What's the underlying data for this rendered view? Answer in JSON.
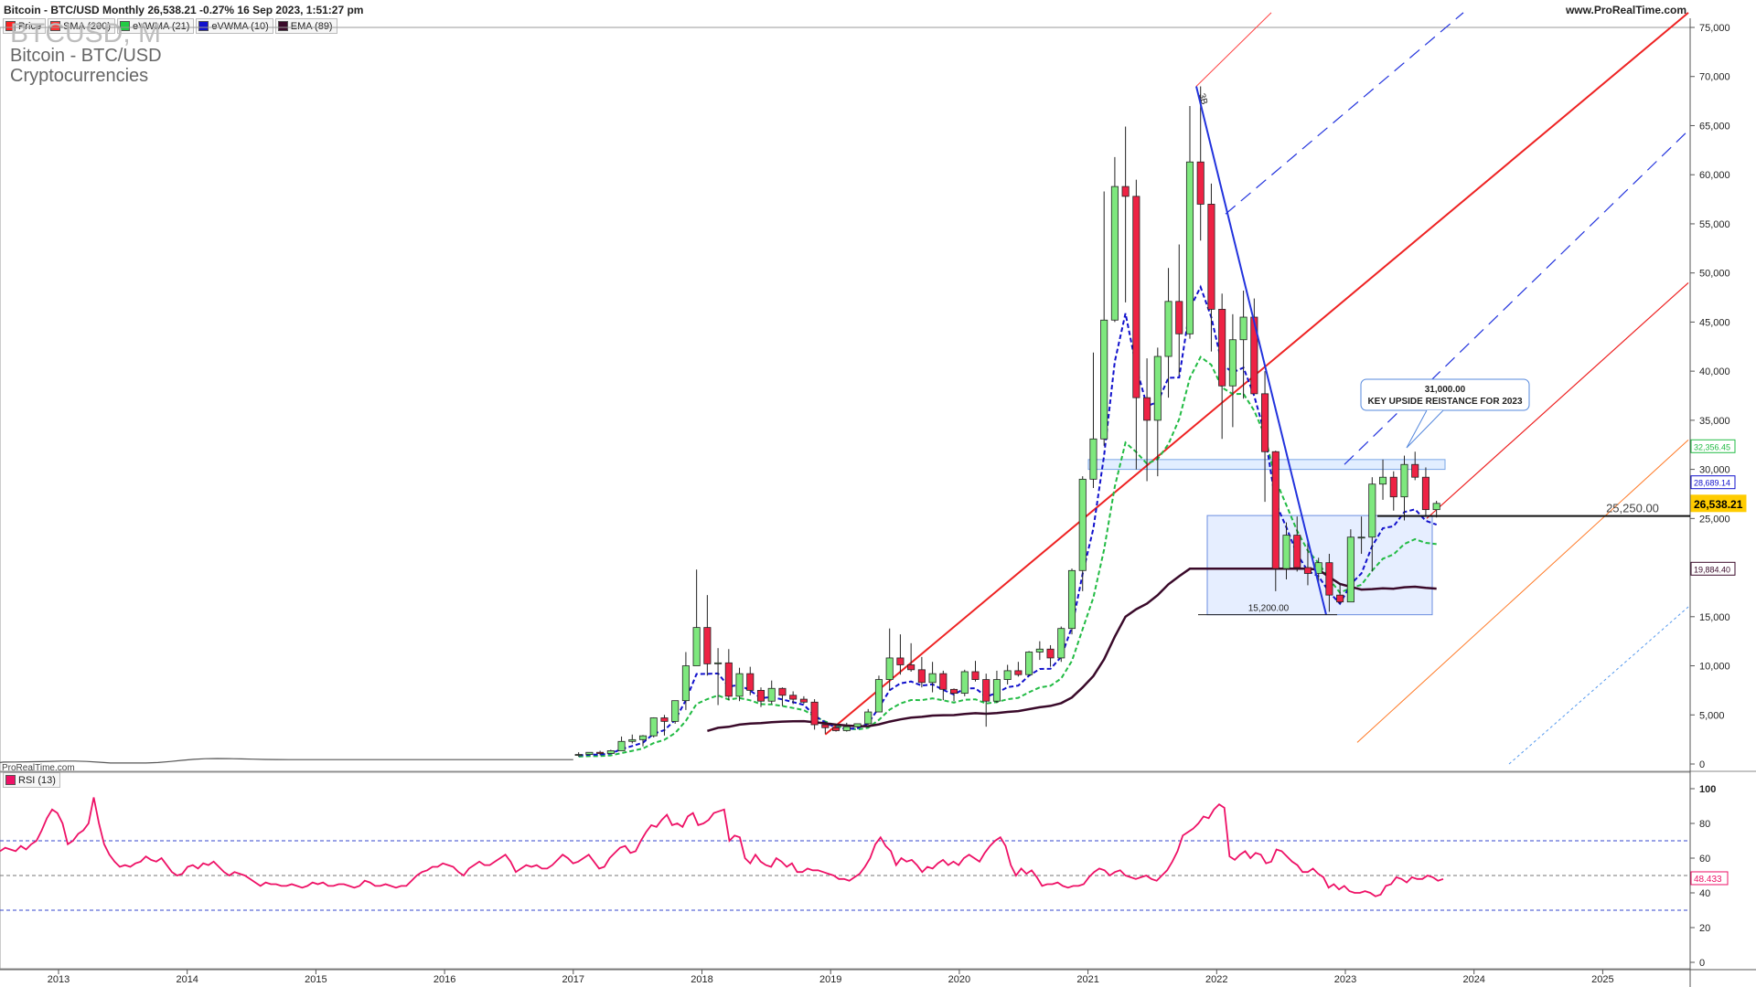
{
  "header": {
    "title": "Bitcoin - BTC/USD Monthly 26,538.21 -0.27% 16 Sep 2023, 1:51:27 pm",
    "site": "www.ProRealTime.com",
    "watermark": "ProRealTime.com"
  },
  "legend": [
    {
      "label": "Price",
      "color": "#ff2222"
    },
    {
      "label": "SMA (200)",
      "color": "#ff3333"
    },
    {
      "label": "eVWMA (21)",
      "color": "#22cc44"
    },
    {
      "label": "eVWMA (10)",
      "color": "#1111cc"
    },
    {
      "label": "EMA (89)",
      "color": "#3a0a2a"
    }
  ],
  "instrument": {
    "symbol": "BTCUSD, M",
    "name": "Bitcoin - BTC/USD",
    "category": "Cryptocurrencies"
  },
  "rsi_legend": {
    "label": "RSI (13)",
    "color": "#ee1166"
  },
  "colors": {
    "up": "#7ee87e",
    "down": "#ee2244",
    "sma": "#ee2222",
    "ev21": "#22bb44",
    "ev10": "#1111cc",
    "ema": "#3a0a2a",
    "rsi": "#ee1166"
  },
  "chart_data": [
    {
      "type": "candlestick",
      "title": "Bitcoin - BTC/USD Monthly",
      "y_axis_ticks": [
        0,
        5000,
        10000,
        15000,
        20000,
        25000,
        30000,
        35000,
        40000,
        45000,
        50000,
        55000,
        60000,
        65000,
        70000,
        75000
      ],
      "y_axis_tick_labels": [
        "0",
        "5,000",
        "10,000",
        "15,000",
        "20,000",
        "25,000",
        "30,000",
        "35,000",
        "40,000",
        "45,000",
        "50,000",
        "55,000",
        "60,000",
        "65,000",
        "70,000",
        "75,000"
      ],
      "ylim": [
        0,
        76500
      ],
      "x_axis_ticks": [
        "2013",
        "2014",
        "2015",
        "2016",
        "2017",
        "2018",
        "2019",
        "2020",
        "2021",
        "2022",
        "2023",
        "2024",
        "2025"
      ],
      "ohlc_monthly_2017_2023": [
        {
          "date": "2017-01",
          "o": 960,
          "h": 1200,
          "l": 750,
          "c": 970
        },
        {
          "date": "2017-02",
          "o": 970,
          "h": 1200,
          "l": 920,
          "c": 1190
        },
        {
          "date": "2017-03",
          "o": 1190,
          "h": 1350,
          "l": 890,
          "c": 1070
        },
        {
          "date": "2017-04",
          "o": 1070,
          "h": 1450,
          "l": 1050,
          "c": 1350
        },
        {
          "date": "2017-05",
          "o": 1350,
          "h": 2800,
          "l": 1350,
          "c": 2300
        },
        {
          "date": "2017-06",
          "o": 2300,
          "h": 3000,
          "l": 2100,
          "c": 2480
        },
        {
          "date": "2017-07",
          "o": 2480,
          "h": 2950,
          "l": 1800,
          "c": 2870
        },
        {
          "date": "2017-08",
          "o": 2870,
          "h": 4750,
          "l": 2700,
          "c": 4700
        },
        {
          "date": "2017-09",
          "o": 4700,
          "h": 5000,
          "l": 2900,
          "c": 4340
        },
        {
          "date": "2017-10",
          "o": 4340,
          "h": 6400,
          "l": 4100,
          "c": 6450
        },
        {
          "date": "2017-11",
          "o": 6450,
          "h": 11400,
          "l": 5500,
          "c": 10000
        },
        {
          "date": "2017-12",
          "o": 10000,
          "h": 19800,
          "l": 10000,
          "c": 13900
        },
        {
          "date": "2018-01",
          "o": 13900,
          "h": 17200,
          "l": 9000,
          "c": 10200
        },
        {
          "date": "2018-02",
          "o": 10200,
          "h": 11800,
          "l": 6000,
          "c": 10300
        },
        {
          "date": "2018-03",
          "o": 10300,
          "h": 11700,
          "l": 6500,
          "c": 6900
        },
        {
          "date": "2018-04",
          "o": 6900,
          "h": 9800,
          "l": 6400,
          "c": 9200
        },
        {
          "date": "2018-05",
          "o": 9200,
          "h": 9900,
          "l": 7000,
          "c": 7500
        },
        {
          "date": "2018-06",
          "o": 7500,
          "h": 7800,
          "l": 5800,
          "c": 6400
        },
        {
          "date": "2018-07",
          "o": 6400,
          "h": 8500,
          "l": 6100,
          "c": 7700
        },
        {
          "date": "2018-08",
          "o": 7700,
          "h": 7800,
          "l": 5900,
          "c": 7000
        },
        {
          "date": "2018-09",
          "o": 7000,
          "h": 7400,
          "l": 6100,
          "c": 6600
        },
        {
          "date": "2018-10",
          "o": 6600,
          "h": 6900,
          "l": 6100,
          "c": 6300
        },
        {
          "date": "2018-11",
          "o": 6300,
          "h": 6600,
          "l": 3500,
          "c": 4000
        },
        {
          "date": "2018-12",
          "o": 4000,
          "h": 4300,
          "l": 3100,
          "c": 3700
        },
        {
          "date": "2019-01",
          "o": 3700,
          "h": 4100,
          "l": 3300,
          "c": 3400
        },
        {
          "date": "2019-02",
          "o": 3400,
          "h": 4200,
          "l": 3300,
          "c": 3800
        },
        {
          "date": "2019-03",
          "o": 3800,
          "h": 4100,
          "l": 3700,
          "c": 4100
        },
        {
          "date": "2019-04",
          "o": 4100,
          "h": 5600,
          "l": 4000,
          "c": 5300
        },
        {
          "date": "2019-05",
          "o": 5300,
          "h": 9000,
          "l": 5300,
          "c": 8600
        },
        {
          "date": "2019-06",
          "o": 8600,
          "h": 13800,
          "l": 7500,
          "c": 10800
        },
        {
          "date": "2019-07",
          "o": 10800,
          "h": 13200,
          "l": 9100,
          "c": 10100
        },
        {
          "date": "2019-08",
          "o": 10100,
          "h": 12300,
          "l": 9400,
          "c": 9600
        },
        {
          "date": "2019-09",
          "o": 9600,
          "h": 10900,
          "l": 7800,
          "c": 8300
        },
        {
          "date": "2019-10",
          "o": 8300,
          "h": 10400,
          "l": 7300,
          "c": 9200
        },
        {
          "date": "2019-11",
          "o": 9200,
          "h": 9500,
          "l": 6500,
          "c": 7600
        },
        {
          "date": "2019-12",
          "o": 7600,
          "h": 7700,
          "l": 6400,
          "c": 7200
        },
        {
          "date": "2020-01",
          "o": 7200,
          "h": 9600,
          "l": 6900,
          "c": 9400
        },
        {
          "date": "2020-02",
          "o": 9400,
          "h": 10500,
          "l": 8400,
          "c": 8600
        },
        {
          "date": "2020-03",
          "o": 8600,
          "h": 9200,
          "l": 3800,
          "c": 6400
        },
        {
          "date": "2020-04",
          "o": 6400,
          "h": 9500,
          "l": 6200,
          "c": 8600
        },
        {
          "date": "2020-05",
          "o": 8600,
          "h": 10100,
          "l": 8100,
          "c": 9500
        },
        {
          "date": "2020-06",
          "o": 9500,
          "h": 10400,
          "l": 8900,
          "c": 9100
        },
        {
          "date": "2020-07",
          "o": 9100,
          "h": 11500,
          "l": 9000,
          "c": 11400
        },
        {
          "date": "2020-08",
          "o": 11400,
          "h": 12500,
          "l": 10600,
          "c": 11700
        },
        {
          "date": "2020-09",
          "o": 11700,
          "h": 12100,
          "l": 9900,
          "c": 10800
        },
        {
          "date": "2020-10",
          "o": 10800,
          "h": 14000,
          "l": 10400,
          "c": 13800
        },
        {
          "date": "2020-11",
          "o": 13800,
          "h": 19900,
          "l": 13200,
          "c": 19700
        },
        {
          "date": "2020-12",
          "o": 19700,
          "h": 29300,
          "l": 17600,
          "c": 29000
        },
        {
          "date": "2021-01",
          "o": 29000,
          "h": 41900,
          "l": 28100,
          "c": 33100
        },
        {
          "date": "2021-02",
          "o": 33100,
          "h": 58300,
          "l": 32400,
          "c": 45200
        },
        {
          "date": "2021-03",
          "o": 45200,
          "h": 61800,
          "l": 45000,
          "c": 58800
        },
        {
          "date": "2021-04",
          "o": 58800,
          "h": 64900,
          "l": 47000,
          "c": 57800
        },
        {
          "date": "2021-05",
          "o": 57800,
          "h": 59500,
          "l": 30000,
          "c": 37300
        },
        {
          "date": "2021-06",
          "o": 37300,
          "h": 41300,
          "l": 28800,
          "c": 35000
        },
        {
          "date": "2021-07",
          "o": 35000,
          "h": 42400,
          "l": 29300,
          "c": 41500
        },
        {
          "date": "2021-08",
          "o": 41500,
          "h": 50500,
          "l": 37300,
          "c": 47100
        },
        {
          "date": "2021-09",
          "o": 47100,
          "h": 52900,
          "l": 39600,
          "c": 43800
        },
        {
          "date": "2021-10",
          "o": 43800,
          "h": 67000,
          "l": 43300,
          "c": 61300
        },
        {
          "date": "2021-11",
          "o": 61300,
          "h": 69000,
          "l": 53300,
          "c": 57000
        },
        {
          "date": "2021-12",
          "o": 57000,
          "h": 59100,
          "l": 42000,
          "c": 46300
        },
        {
          "date": "2022-01",
          "o": 46300,
          "h": 47900,
          "l": 33100,
          "c": 38500
        },
        {
          "date": "2022-02",
          "o": 38500,
          "h": 45800,
          "l": 34300,
          "c": 43200
        },
        {
          "date": "2022-03",
          "o": 43200,
          "h": 48200,
          "l": 37200,
          "c": 45500
        },
        {
          "date": "2022-04",
          "o": 45500,
          "h": 47400,
          "l": 37700,
          "c": 37700
        },
        {
          "date": "2022-05",
          "o": 37700,
          "h": 40000,
          "l": 26700,
          "c": 31800
        },
        {
          "date": "2022-06",
          "o": 31800,
          "h": 31900,
          "l": 17600,
          "c": 19900
        },
        {
          "date": "2022-07",
          "o": 19900,
          "h": 24600,
          "l": 18800,
          "c": 23300
        },
        {
          "date": "2022-08",
          "o": 23300,
          "h": 25200,
          "l": 19600,
          "c": 20000
        },
        {
          "date": "2022-09",
          "o": 20000,
          "h": 22700,
          "l": 18200,
          "c": 19400
        },
        {
          "date": "2022-10",
          "o": 19400,
          "h": 21000,
          "l": 18200,
          "c": 20500
        },
        {
          "date": "2022-11",
          "o": 20500,
          "h": 21400,
          "l": 15500,
          "c": 17200
        },
        {
          "date": "2022-12",
          "o": 17200,
          "h": 18400,
          "l": 16300,
          "c": 16500
        },
        {
          "date": "2023-01",
          "o": 16500,
          "h": 23900,
          "l": 16500,
          "c": 23100
        },
        {
          "date": "2023-02",
          "o": 23100,
          "h": 25200,
          "l": 21400,
          "c": 23100
        },
        {
          "date": "2023-03",
          "o": 23100,
          "h": 29200,
          "l": 19600,
          "c": 28500
        },
        {
          "date": "2023-04",
          "o": 28500,
          "h": 31000,
          "l": 26900,
          "c": 29200
        },
        {
          "date": "2023-05",
          "o": 29200,
          "h": 29800,
          "l": 25800,
          "c": 27200
        },
        {
          "date": "2023-06",
          "o": 27200,
          "h": 31400,
          "l": 24800,
          "c": 30500
        },
        {
          "date": "2023-07",
          "o": 30500,
          "h": 31800,
          "l": 28900,
          "c": 29200
        },
        {
          "date": "2023-08",
          "o": 29200,
          "h": 30200,
          "l": 25300,
          "c": 25900
        },
        {
          "date": "2023-09",
          "o": 25900,
          "h": 26800,
          "l": 25100,
          "c": 26538
        }
      ],
      "series": [
        {
          "name": "SMA (200)",
          "style": "solid trendline",
          "points": [
            {
              "date": "2018-12",
              "y": 3000
            },
            {
              "date": "2023-09",
              "y": 58000
            }
          ]
        },
        {
          "name": "eVWMA (21)",
          "last_value": 32356.45
        },
        {
          "name": "eVWMA (10)",
          "last_value": 28689.14
        },
        {
          "name": "EMA (89)",
          "last_value": 19884.4
        }
      ],
      "price_labels": [
        {
          "label": "32,356.45",
          "value": 32356.45,
          "color": "#22bb44"
        },
        {
          "label": "28,689.14",
          "value": 28689.14,
          "color": "#1111cc"
        },
        {
          "label": "26,538.21",
          "value": 26538.21,
          "color": "#ffcc00",
          "current": true
        },
        {
          "label": "19,884.40",
          "value": 19884.4,
          "color": "#3a0a2a"
        }
      ],
      "annotations": [
        {
          "type": "horizontal_line",
          "label": "25,250.00",
          "value": 25250
        },
        {
          "type": "callout",
          "value_text": "31,000.00",
          "text": "KEY UPSIDE REISTANCE FOR 2023",
          "value": 31000
        },
        {
          "type": "level",
          "label": "15,200.00",
          "value": 15200
        },
        {
          "type": "zone",
          "label": "resistance band",
          "y_range": [
            30000,
            31000
          ]
        },
        {
          "type": "zone",
          "label": "range box",
          "y_range": [
            15200,
            25300
          ]
        },
        {
          "type": "marker",
          "label": "3B",
          "value": 69000
        }
      ]
    },
    {
      "type": "line",
      "title": "RSI (13)",
      "ylim": [
        0,
        100
      ],
      "y_axis_ticks": [
        0,
        20,
        40,
        60,
        80,
        100
      ],
      "levels": [
        30,
        50,
        70
      ],
      "last_value_label": "48.433",
      "values": [
        64,
        66,
        65,
        64,
        67,
        65,
        68,
        70,
        76,
        83,
        88,
        86,
        80,
        68,
        70,
        74,
        76,
        80,
        95,
        80,
        68,
        62,
        58,
        55,
        56,
        55,
        57,
        58,
        61,
        59,
        58,
        60,
        56,
        52,
        50,
        51,
        55,
        56,
        54,
        57,
        56,
        58,
        55,
        52,
        50,
        52,
        51,
        50,
        48,
        46,
        44,
        46,
        45,
        45,
        44,
        44,
        45,
        44,
        43,
        44,
        46,
        45,
        46,
        44,
        44,
        45,
        45,
        44,
        43,
        44,
        47,
        46,
        44,
        44,
        45,
        44,
        43,
        44,
        44,
        47,
        50,
        52,
        53,
        55,
        55,
        57,
        56,
        55,
        52,
        50,
        54,
        56,
        58,
        56,
        56,
        58,
        60,
        62,
        58,
        52,
        54,
        56,
        55,
        56,
        54,
        54,
        56,
        59,
        62,
        60,
        57,
        58,
        60,
        62,
        58,
        54,
        55,
        60,
        63,
        66,
        67,
        63,
        64,
        70,
        75,
        79,
        78,
        82,
        85,
        79,
        80,
        78,
        84,
        86,
        79,
        80,
        82,
        86,
        87,
        88,
        70,
        73,
        72,
        60,
        57,
        62,
        58,
        56,
        55,
        60,
        58,
        55,
        57,
        52,
        52,
        54,
        53,
        53,
        52,
        51,
        50,
        48,
        48,
        47,
        49,
        51,
        55,
        60,
        68,
        72,
        67,
        64,
        56,
        60,
        58,
        59,
        56,
        52,
        55,
        54,
        57,
        59,
        56,
        58,
        56,
        60,
        62,
        60,
        58,
        63,
        67,
        70,
        72,
        67,
        56,
        50,
        54,
        51,
        53,
        49,
        44,
        45,
        45,
        46,
        44,
        43,
        44,
        44,
        45,
        49,
        52,
        54,
        53,
        50,
        52,
        53,
        50,
        49,
        48,
        49,
        50,
        48,
        47,
        50,
        53,
        58,
        64,
        73,
        75,
        77,
        80,
        84,
        83,
        88,
        91,
        89,
        61,
        59,
        62,
        64,
        60,
        63,
        62,
        57,
        58,
        65,
        64,
        61,
        58,
        56,
        52,
        52,
        54,
        51,
        49,
        43,
        45,
        42,
        44,
        41,
        40,
        40,
        41,
        40,
        38,
        39,
        44,
        45,
        49,
        48,
        46,
        49,
        48,
        48,
        50,
        49,
        47,
        48
      ]
    }
  ]
}
